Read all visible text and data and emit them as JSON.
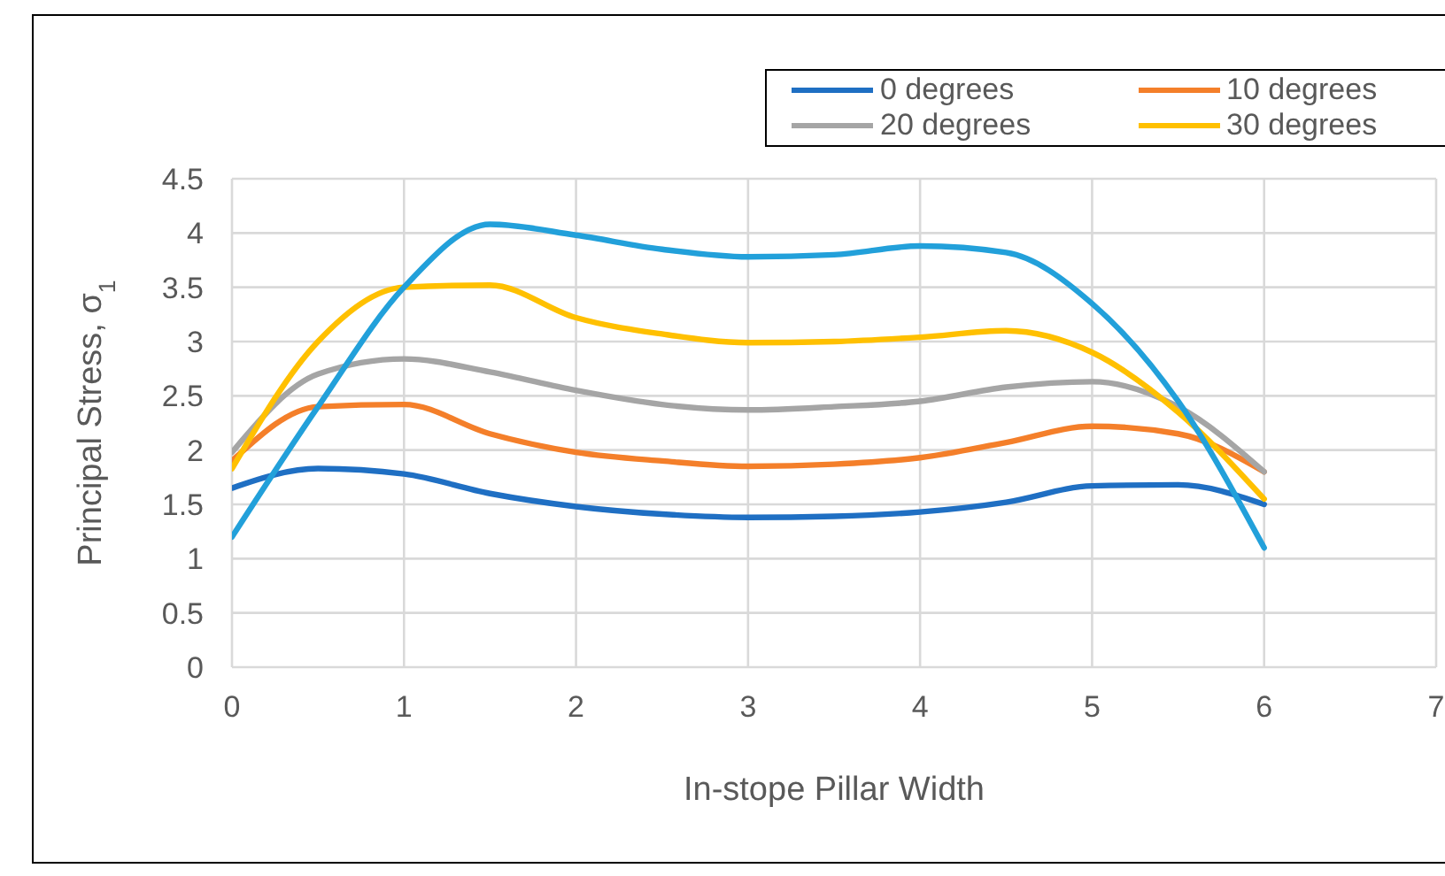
{
  "chart_data": {
    "type": "line",
    "xlabel": "In-stope Pillar Width",
    "ylabel": "Principal Stress, σ$_{1}$",
    "x": [
      0,
      0.5,
      1,
      1.5,
      2,
      2.5,
      3,
      3.5,
      4,
      4.5,
      5,
      5.5,
      6
    ],
    "series": [
      {
        "name": "0 degrees",
        "color": "#1f6fc3",
        "values": [
          1.65,
          1.83,
          1.78,
          1.6,
          1.48,
          1.41,
          1.38,
          1.39,
          1.43,
          1.52,
          1.67,
          1.68,
          1.5
        ]
      },
      {
        "name": "10 degrees",
        "color": "#f47f2a",
        "values": [
          1.9,
          2.4,
          2.42,
          2.15,
          1.98,
          1.9,
          1.85,
          1.87,
          1.93,
          2.07,
          2.22,
          2.15,
          1.8
        ]
      },
      {
        "name": "20 degrees",
        "color": "#a5a5a5",
        "values": [
          1.98,
          2.7,
          2.84,
          2.72,
          2.55,
          2.42,
          2.37,
          2.4,
          2.45,
          2.58,
          2.63,
          2.4,
          1.8
        ]
      },
      {
        "name": "30 degrees",
        "color": "#ffc000",
        "values": [
          1.83,
          3.0,
          3.5,
          3.52,
          3.22,
          3.07,
          2.99,
          3.0,
          3.04,
          3.1,
          2.9,
          2.35,
          1.55
        ]
      },
      {
        "color": "#22a0da",
        "values": [
          1.2,
          2.4,
          3.5,
          4.08,
          3.98,
          3.85,
          3.78,
          3.8,
          3.88,
          3.82,
          3.35,
          2.45,
          1.1
        ]
      }
    ],
    "xlim": [
      0,
      7
    ],
    "xticks": [
      0,
      1,
      2,
      3,
      4,
      5,
      6,
      7
    ],
    "ylim": [
      0,
      4.5
    ],
    "yticks": [
      0,
      0.5,
      1,
      1.5,
      2,
      2.5,
      3,
      3.5,
      4,
      4.5
    ],
    "grid": true,
    "legend": "top right",
    "marker": "none",
    "line_style": "solid"
  }
}
